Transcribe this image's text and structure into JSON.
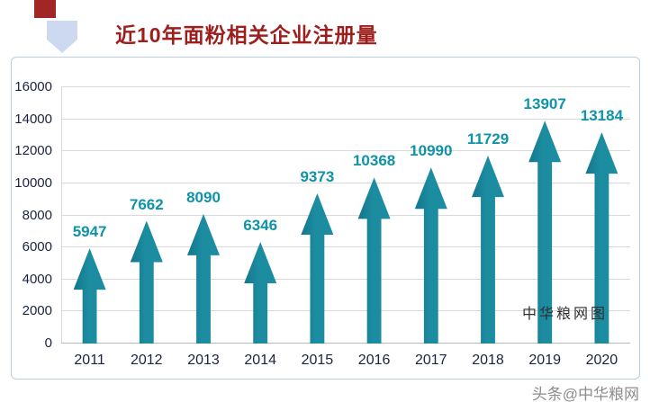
{
  "title": "近10年面粉相关企业注册量",
  "watermark": "中华粮网图",
  "credit": "头条@中华粮网",
  "colors": {
    "title": "#9e1e1e",
    "arrow": "#1c8ca1",
    "value_label": "#0e93a9",
    "axis_text": "#1c2340",
    "grid": "#d9d9d9",
    "frame": "#b9cfdf",
    "deco_square": "#a32626",
    "deco_arrow": "#cdd9f1"
  },
  "chart_data": {
    "type": "bar",
    "bar_style": "upward-arrow",
    "title": "近10年面粉相关企业注册量",
    "categories": [
      "2011",
      "2012",
      "2013",
      "2014",
      "2015",
      "2016",
      "2017",
      "2018",
      "2019",
      "2020"
    ],
    "values": [
      5947,
      7662,
      8090,
      6346,
      9373,
      10368,
      10990,
      11729,
      13907,
      13184
    ],
    "xlabel": "",
    "ylabel": "",
    "ylim": [
      0,
      16000
    ],
    "yticks": [
      0,
      2000,
      4000,
      6000,
      8000,
      10000,
      12000,
      14000,
      16000
    ],
    "grid": true,
    "legend": "none"
  }
}
